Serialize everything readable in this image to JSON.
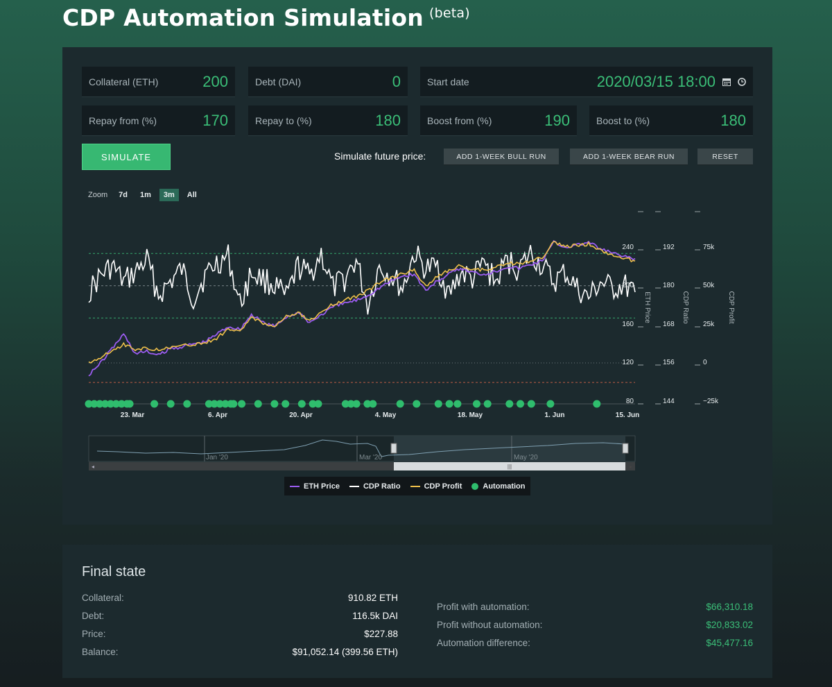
{
  "header": {
    "title": "CDP Automation Simulation",
    "badge": "(beta)"
  },
  "inputs": {
    "collateral": {
      "label": "Collateral (ETH)",
      "value": "200"
    },
    "debt": {
      "label": "Debt (DAI)",
      "value": "0"
    },
    "start_date": {
      "label": "Start date",
      "value": "2020/03/15 18:00"
    },
    "repay_from": {
      "label": "Repay from (%)",
      "value": "170"
    },
    "repay_to": {
      "label": "Repay to (%)",
      "value": "180"
    },
    "boost_from": {
      "label": "Boost from (%)",
      "value": "190"
    },
    "boost_to": {
      "label": "Boost to (%)",
      "value": "180"
    }
  },
  "actions": {
    "simulate": "SIMULATE",
    "future_label": "Simulate future price:",
    "bull": "ADD 1-WEEK BULL RUN",
    "bear": "ADD 1-WEEK BEAR RUN",
    "reset": "RESET"
  },
  "zoom": {
    "label": "Zoom",
    "options": [
      "7d",
      "1m",
      "3m",
      "All"
    ],
    "selected": "3m"
  },
  "chart_data": {
    "type": "line",
    "x_ticks": [
      "23. Mar",
      "6. Apr",
      "20. Apr",
      "4. May",
      "18. May",
      "1. Jun",
      "15. Jun"
    ],
    "axes": [
      {
        "title": "ETH Price",
        "ticks": [
          "80",
          "120",
          "160",
          "200",
          "240"
        ]
      },
      {
        "title": "CDP Ratio",
        "ticks": [
          "144",
          "156",
          "168",
          "180",
          "192"
        ]
      },
      {
        "title": "CDP Profit",
        "ticks": [
          "−25k",
          "0",
          "25k",
          "50k",
          "75k"
        ]
      }
    ],
    "series": [
      {
        "name": "ETH Price",
        "color": "#9b5cf0",
        "values": [
          108,
          120,
          135,
          150,
          130,
          132,
          128,
          135,
          137,
          140,
          142,
          150,
          158,
          155,
          170,
          162,
          158,
          168,
          172,
          162,
          170,
          178,
          182,
          185,
          190,
          198,
          205,
          210,
          212,
          195,
          205,
          212,
          218,
          214,
          212,
          215,
          220,
          218,
          222,
          226,
          245,
          240,
          242,
          245,
          238,
          234,
          230,
          228
        ]
      },
      {
        "name": "CDP Ratio",
        "color": "#ffffff",
        "values": [
          178,
          183,
          186,
          181,
          184,
          188,
          177,
          181,
          185,
          176,
          183,
          187,
          189,
          174,
          184,
          182,
          180,
          176,
          186,
          183,
          190,
          179,
          182,
          188,
          174,
          186,
          183,
          179,
          190,
          185,
          186,
          177,
          184,
          182,
          187,
          181,
          188,
          185,
          190,
          186,
          181,
          184,
          179,
          176,
          181,
          179,
          180,
          178
        ]
      },
      {
        "name": "CDP Profit",
        "color": "#f0c14b",
        "values": [
          0,
          4000,
          8000,
          12000,
          9000,
          9500,
          9000,
          10000,
          11000,
          12000,
          13000,
          16000,
          22000,
          20000,
          30000,
          26000,
          24000,
          30000,
          33000,
          27000,
          33000,
          38000,
          41000,
          43000,
          47000,
          52000,
          55000,
          58000,
          60000,
          50000,
          56000,
          60000,
          63000,
          61000,
          60000,
          62000,
          65000,
          64000,
          66000,
          68000,
          78000,
          75000,
          76000,
          77000,
          73000,
          70000,
          68000,
          66000
        ]
      }
    ],
    "automation_marker_color": "#2fbd6d",
    "automation_events": 42,
    "navigator_labels": [
      "Jan '20",
      "Mar '20",
      "May '20"
    ],
    "legend": [
      "ETH Price",
      "CDP Ratio",
      "CDP Profit",
      "Automation"
    ]
  },
  "final_state": {
    "title": "Final state",
    "left": [
      {
        "k": "Collateral:",
        "v": "910.82 ETH"
      },
      {
        "k": "Debt:",
        "v": "116.5k DAI"
      },
      {
        "k": "Price:",
        "v": "$227.88"
      },
      {
        "k": "Balance:",
        "v": "$91,052.14 (399.56 ETH)"
      }
    ],
    "right": [
      {
        "k": "Profit with automation:",
        "v": "$66,310.18"
      },
      {
        "k": "Profit without automation:",
        "v": "$20,833.02"
      },
      {
        "k": "Automation difference:",
        "v": "$45,477.16"
      }
    ]
  }
}
